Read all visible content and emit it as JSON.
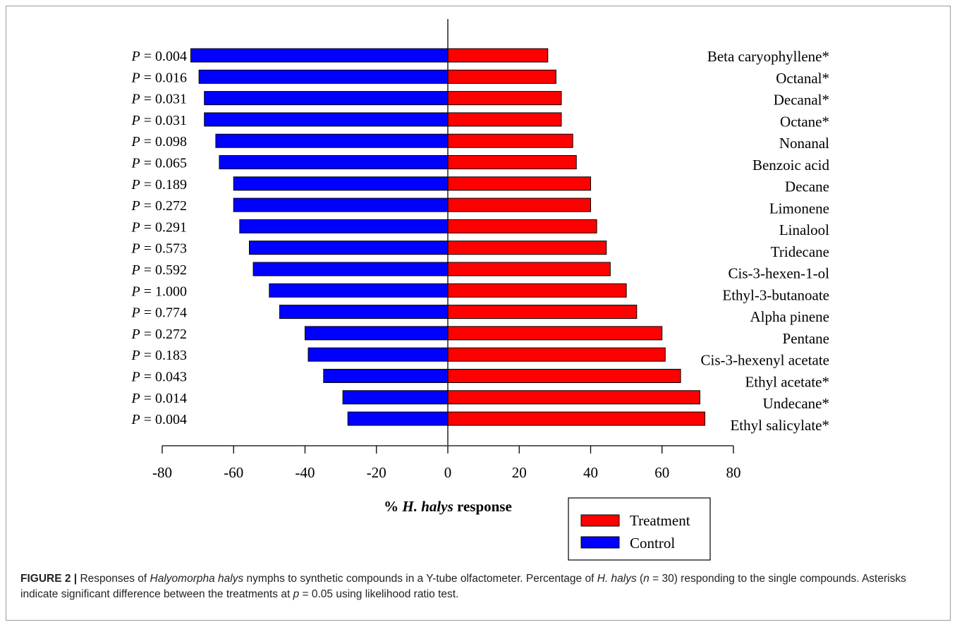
{
  "chart_data": {
    "type": "bar",
    "orientation": "horizontal",
    "diverging": true,
    "categories": [
      "Beta caryophyllene*",
      "Octanal*",
      "Decanal*",
      "Octane*",
      "Nonanal",
      "Benzoic acid",
      "Decane",
      "Limonene",
      "Linalool",
      "Tridecane",
      "Cis-3-hexen-1-ol",
      "Ethyl-3-butanoate",
      "Alpha pinene",
      "Pentane",
      "Cis-3-hexenyl acetate",
      "Ethyl acetate*",
      "Undecane*",
      "Ethyl salicylate*"
    ],
    "p_label_prefix": "P",
    "p_values": [
      "0.004",
      "0.016",
      "0.031",
      "0.031",
      "0.098",
      "0.065",
      "0.189",
      "0.272",
      "0.291",
      "0.573",
      "0.592",
      "1.000",
      "0.774",
      "0.272",
      "0.183",
      "0.043",
      "0.014",
      "0.004"
    ],
    "series": [
      {
        "name": "Treatment",
        "color": "#ff0000",
        "values": [
          28,
          30.3,
          31.8,
          31.8,
          35,
          36,
          40,
          40,
          41.7,
          44.4,
          45.5,
          50,
          52.9,
          60,
          60.9,
          65.2,
          70.6,
          72
        ]
      },
      {
        "name": "Control",
        "color": "#0000ff",
        "values": [
          -72,
          -69.7,
          -68.2,
          -68.2,
          -65,
          -64,
          -60,
          -60,
          -58.3,
          -55.6,
          -54.5,
          -50,
          -47.1,
          -40,
          -39.1,
          -34.8,
          -29.4,
          -28
        ]
      }
    ],
    "xlim": [
      -80,
      80
    ],
    "xticks": [
      -80,
      -60,
      -40,
      -20,
      0,
      20,
      40,
      60,
      80
    ],
    "xlabel_prefix": "% ",
    "xlabel_italic": "H. halys",
    "xlabel_suffix": " response",
    "legend": [
      "Treatment",
      "Control"
    ],
    "legend_position": "bottom-right",
    "grid": false
  },
  "caption": {
    "label": "FIGURE 2 |",
    "text_1": " Responses of ",
    "italic_1": "Halyomorpha halys",
    "text_2": " nymphs to synthetic compounds in a Y-tube olfactometer. Percentage of ",
    "italic_2": "H. halys",
    "text_3": " (",
    "italic_3": "n",
    "text_4": " = 30) responding to the single compounds. Asterisks indicate significant difference between the treatments at ",
    "italic_4": "p",
    "text_5": " = 0.05 using likelihood ratio test."
  }
}
